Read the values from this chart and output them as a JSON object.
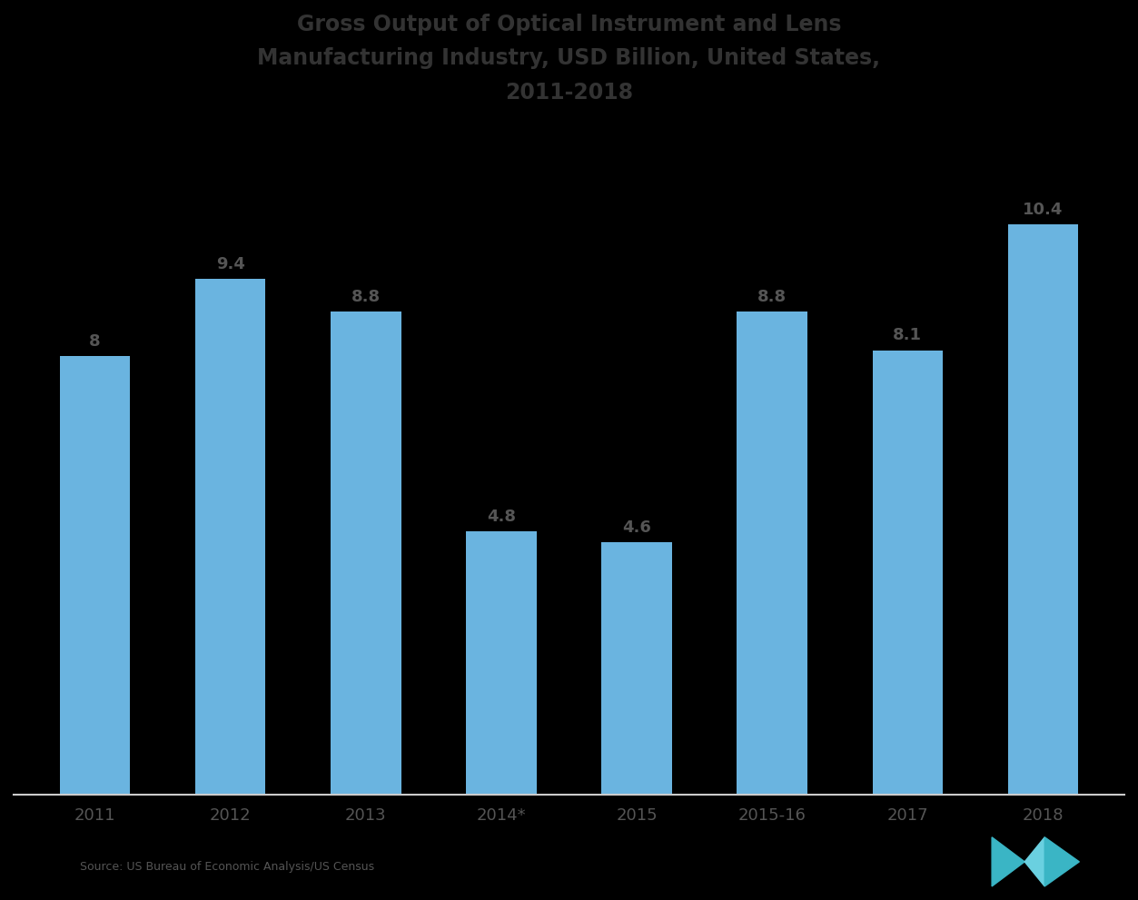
{
  "title_line1": "Gross Output of Optical Instrument and Lens",
  "title_line2": "Manufacturing Industry, USD Billion, United States,",
  "title_line3": "2011-2018",
  "categories": [
    "2011",
    "2012",
    "2013",
    "2014*",
    "2015",
    "2015-16",
    "2017",
    "2018"
  ],
  "values": [
    8.0,
    9.4,
    8.8,
    4.8,
    4.6,
    8.8,
    8.1,
    10.4
  ],
  "bar_color": "#6ab4e0",
  "value_labels": [
    "8",
    "9.4",
    "8.8",
    "4.8",
    "4.6",
    "8.8",
    "8.1",
    "10.4"
  ],
  "background_color": "#000000",
  "text_color": "#555555",
  "title_color": "#333333",
  "axis_label_color": "#555555",
  "ylim": [
    0,
    12
  ],
  "source_text": "Source: US Bureau of Economic Analysis/US Census",
  "footer_color": "#555555",
  "bottom_spine_color": "#cccccc",
  "logo_color1": "#3ab5c5",
  "logo_color2": "#6ad0e0"
}
